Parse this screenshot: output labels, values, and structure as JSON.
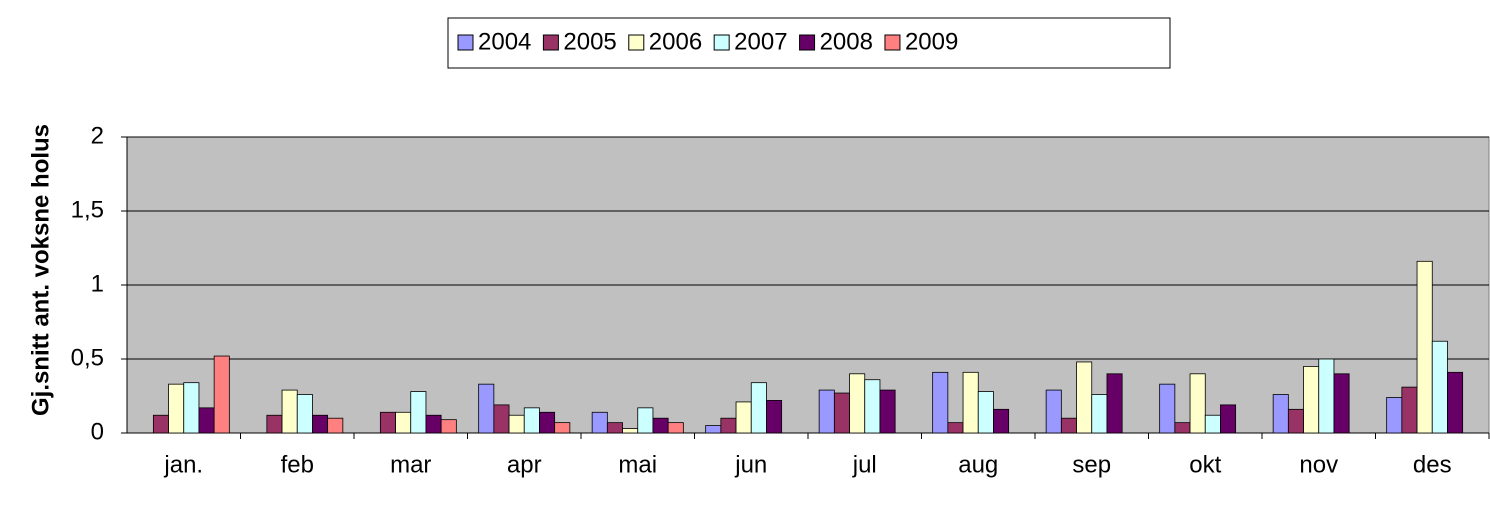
{
  "chart_data": {
    "type": "bar",
    "ylabel": "Gj.snitt ant.  voksne holus",
    "categories": [
      "jan.",
      "feb",
      "mar",
      "apr",
      "mai",
      "jun",
      "jul",
      "aug",
      "sep",
      "okt",
      "nov",
      "des"
    ],
    "series": [
      {
        "name": "2004",
        "color": "#9999ff",
        "values": [
          null,
          null,
          null,
          0.33,
          0.14,
          0.05,
          0.29,
          0.41,
          0.29,
          0.33,
          0.26,
          0.24
        ]
      },
      {
        "name": "2005",
        "color": "#993366",
        "values": [
          0.12,
          0.12,
          0.14,
          0.19,
          0.07,
          0.1,
          0.27,
          0.07,
          0.1,
          0.07,
          0.16,
          0.31
        ]
      },
      {
        "name": "2006",
        "color": "#ffffcc",
        "values": [
          0.33,
          0.29,
          0.14,
          0.12,
          0.03,
          0.21,
          0.4,
          0.41,
          0.48,
          0.4,
          0.45,
          1.16
        ]
      },
      {
        "name": "2007",
        "color": "#ccffff",
        "values": [
          0.34,
          0.26,
          0.28,
          0.17,
          0.17,
          0.34,
          0.36,
          0.28,
          0.26,
          0.12,
          0.5,
          0.62
        ]
      },
      {
        "name": "2008",
        "color": "#660066",
        "values": [
          0.17,
          0.12,
          0.12,
          0.14,
          0.1,
          0.22,
          0.29,
          0.16,
          0.4,
          0.19,
          0.4,
          0.41
        ]
      },
      {
        "name": "2009",
        "color": "#ff8080",
        "values": [
          0.52,
          0.1,
          0.09,
          0.07,
          0.07,
          null,
          null,
          null,
          null,
          null,
          null,
          null
        ]
      }
    ],
    "ylim": [
      0,
      2
    ],
    "yticks": [
      0,
      {
        "value": 0.5,
        "label": "0,5"
      },
      1,
      {
        "value": 1.5,
        "label": "1,5"
      },
      2
    ],
    "grid": true,
    "legend": "top"
  }
}
